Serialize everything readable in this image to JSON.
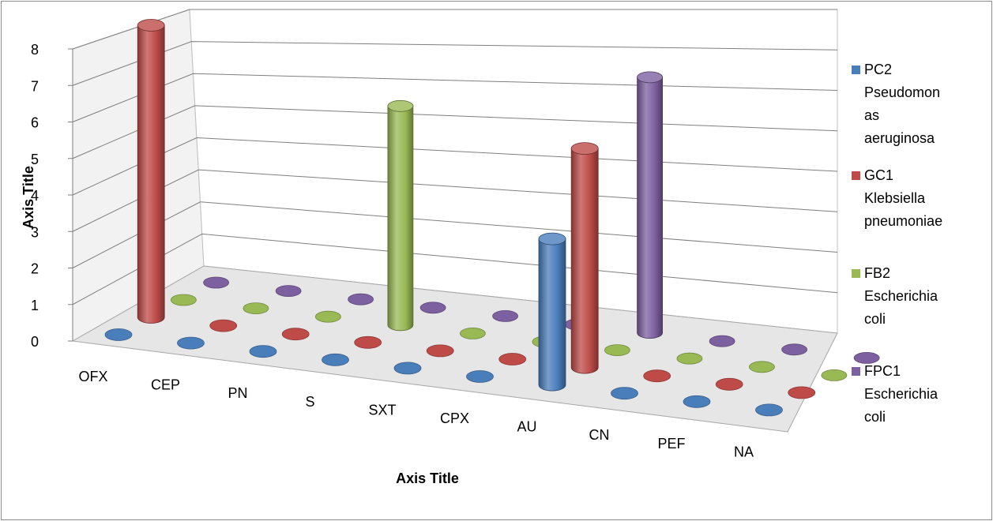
{
  "chart_data": {
    "type": "bar",
    "title": "",
    "xlabel": "Axis Title",
    "ylabel": "Axis Title",
    "ylim": [
      0,
      8
    ],
    "yticks": [
      "0",
      "1",
      "2",
      "3",
      "4",
      "5",
      "6",
      "7",
      "8"
    ],
    "categories": [
      "OFX",
      "CEP",
      "PN",
      "S",
      "SXT",
      "CPX",
      "AU",
      "CN",
      "PEF",
      "NA"
    ],
    "series": [
      {
        "name": "PC2 Pseudomonas aeruginosa",
        "legend_label": "PC2\nPseudomon\nas\naeruginosa",
        "color": "#4a7ebb",
        "values": [
          0,
          0,
          0,
          0,
          0,
          0,
          4,
          0,
          0,
          0
        ]
      },
      {
        "name": "GC1 Klebsiella pneumoniae",
        "legend_label": "GC1\nKlebsiella\npneumoniae",
        "color": "#be4b48",
        "values": [
          8,
          0,
          0,
          0,
          0,
          0,
          6,
          0,
          0,
          0
        ]
      },
      {
        "name": "FB2 Escherichia coli",
        "legend_label": "FB2\nEscherichia\ncoli",
        "color": "#98b954",
        "values": [
          0,
          0,
          0,
          6,
          0,
          0,
          0,
          0,
          0,
          0
        ]
      },
      {
        "name": "FPC1 Escherichia coli",
        "legend_label": "FPC1\nEscherichia\ncoli",
        "color": "#7d60a0",
        "values": [
          0,
          0,
          0,
          0,
          0,
          0,
          7,
          0,
          0,
          0
        ]
      }
    ],
    "grid": true,
    "legend_position": "right",
    "style": "3d-cylinder"
  }
}
